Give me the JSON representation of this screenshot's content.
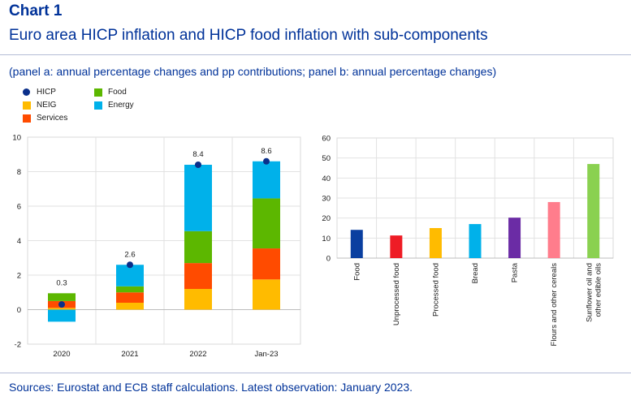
{
  "header": {
    "chart_label": "Chart 1",
    "title": "Euro area HICP inflation and HICP food inflation with sub-components",
    "subtitle": "(panel a: annual percentage changes and pp contributions; panel b: annual percentage changes)"
  },
  "footer": {
    "source": "Sources: Eurostat and ECB staff calculations. Latest observation: January 2023."
  },
  "colors": {
    "hicp": "#0a2f8a",
    "food": "#5cb700",
    "neig": "#ffbb00",
    "services": "#ff4b00",
    "energy": "#00b1ea",
    "panel_b": [
      "#0a3fa0",
      "#ee1c25",
      "#ffbb00",
      "#00b1ea",
      "#6b2ca5",
      "#ff7d8c",
      "#8ad150"
    ]
  },
  "chart_data": [
    {
      "type": "bar",
      "stacked": true,
      "categories": [
        "2020",
        "2021",
        "2022",
        "Jan-23"
      ],
      "series": [
        {
          "name": "NEIG",
          "key": "neig",
          "values": [
            0.1,
            0.4,
            1.2,
            1.75
          ]
        },
        {
          "name": "Services",
          "key": "services",
          "values": [
            0.4,
            0.6,
            1.5,
            1.8
          ]
        },
        {
          "name": "Food",
          "key": "food",
          "values": [
            0.45,
            0.35,
            1.85,
            2.9
          ]
        },
        {
          "name": "Energy",
          "key": "energy",
          "values": [
            -0.7,
            1.25,
            3.85,
            2.15
          ]
        }
      ],
      "line_series": {
        "name": "HICP",
        "key": "hicp",
        "values": [
          0.3,
          2.6,
          8.4,
          8.6
        ],
        "labels": [
          "0.3",
          "2.6",
          "8.4",
          "8.6"
        ]
      },
      "ylim": [
        -2,
        10
      ],
      "yticks": [
        "-2",
        "0",
        "2",
        "4",
        "6",
        "8",
        "10"
      ],
      "ytick_values": [
        -2,
        0,
        2,
        4,
        6,
        8,
        10
      ],
      "grid": true,
      "legend_position": "top-left"
    },
    {
      "type": "bar",
      "categories": [
        "Food",
        "Unprocessed food",
        "Processed food",
        "Bread",
        "Pasta",
        "Flours and other cereals",
        "Sunflower oil and other edible oils"
      ],
      "category_lines": [
        [
          "Food"
        ],
        [
          "Unprocessed food"
        ],
        [
          "Processed food"
        ],
        [
          "Bread"
        ],
        [
          "Pasta"
        ],
        [
          "Flours and other cereals"
        ],
        [
          "Sunflower oil and",
          "other edible oils"
        ]
      ],
      "values": [
        14.1,
        11.3,
        15.0,
        17.0,
        20.2,
        28.0,
        47.0
      ],
      "ylim": [
        0,
        60
      ],
      "yticks": [
        "0",
        "10",
        "20",
        "30",
        "40",
        "50",
        "60"
      ],
      "ytick_values": [
        0,
        10,
        20,
        30,
        40,
        50,
        60
      ],
      "grid": true
    }
  ]
}
